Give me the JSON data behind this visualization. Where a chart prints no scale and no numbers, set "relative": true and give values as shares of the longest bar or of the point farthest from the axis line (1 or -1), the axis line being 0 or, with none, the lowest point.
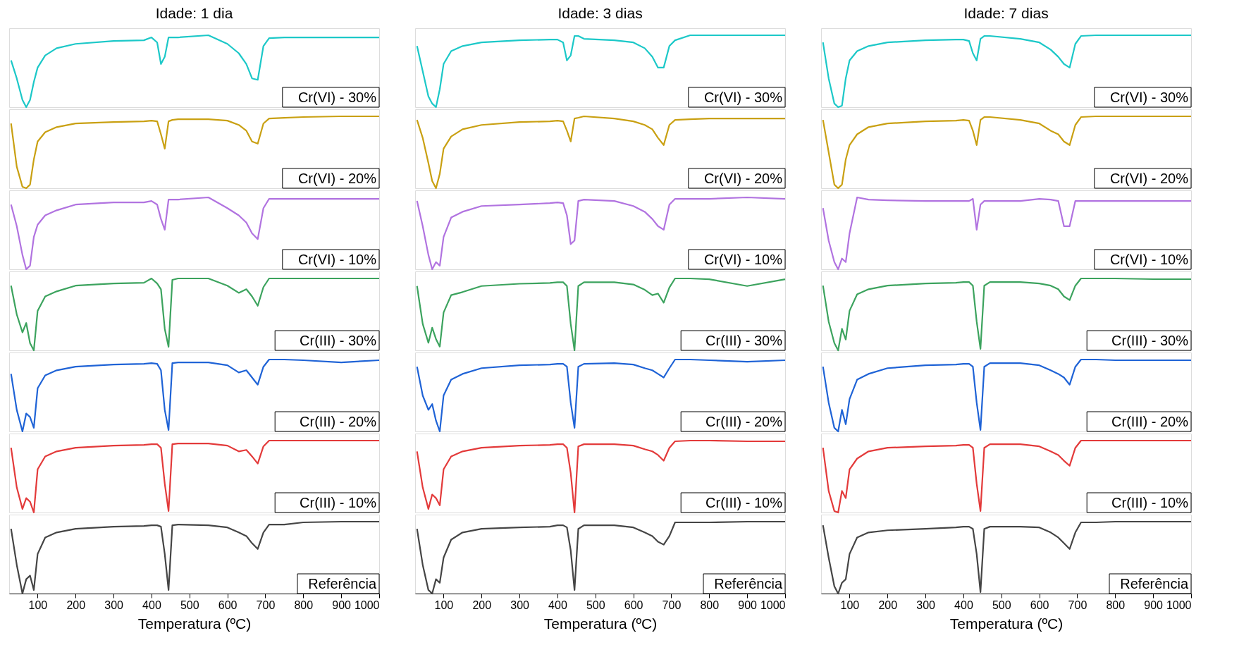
{
  "chart_data": [
    {
      "type": "line",
      "relative": true,
      "title": "Idade: 1 dia",
      "xlim": [
        25,
        1000
      ],
      "tick_labels": false,
      "x": [
        30,
        45,
        60,
        70,
        80,
        90,
        100,
        120,
        150,
        200,
        300,
        380,
        400,
        415,
        425,
        435,
        445,
        455,
        470,
        550,
        600,
        630,
        650,
        665,
        680,
        695,
        710,
        750,
        800,
        900,
        1000
      ],
      "series": [
        {
          "name": "Cr(VI) - 30%",
          "color": "#1cc8c8",
          "values": [
            0.65,
            0.4,
            0.1,
            0,
            0.1,
            0.35,
            0.55,
            0.72,
            0.82,
            0.88,
            0.92,
            0.93,
            0.97,
            0.9,
            0.6,
            0.7,
            0.97,
            0.97,
            0.97,
            1.0,
            0.88,
            0.75,
            0.6,
            0.4,
            0.38,
            0.85,
            0.96,
            0.97,
            0.97,
            0.97,
            0.97
          ]
        }
      ]
    },
    {
      "type": "line",
      "relative": true,
      "xlim": [
        25,
        1000
      ],
      "tick_labels": false,
      "x": [
        30,
        45,
        60,
        70,
        80,
        90,
        100,
        120,
        150,
        200,
        300,
        380,
        400,
        415,
        425,
        435,
        445,
        455,
        470,
        550,
        600,
        630,
        650,
        665,
        680,
        695,
        710,
        750,
        800,
        900,
        1000
      ],
      "series": [
        {
          "name": "Cr(VI) - 20%",
          "color": "#c9a012",
          "values": [
            0.9,
            0.3,
            0.02,
            0,
            0.05,
            0.4,
            0.65,
            0.78,
            0.85,
            0.9,
            0.92,
            0.93,
            0.94,
            0.93,
            0.75,
            0.55,
            0.93,
            0.95,
            0.96,
            0.96,
            0.94,
            0.88,
            0.8,
            0.65,
            0.62,
            0.9,
            0.97,
            0.98,
            0.99,
            1.0,
            1.0
          ]
        }
      ]
    },
    {
      "type": "line",
      "relative": true,
      "xlim": [
        25,
        1000
      ],
      "tick_labels": false,
      "x": [
        30,
        45,
        60,
        70,
        80,
        90,
        100,
        120,
        150,
        200,
        300,
        380,
        400,
        415,
        425,
        435,
        445,
        455,
        470,
        550,
        600,
        630,
        650,
        665,
        680,
        695,
        710,
        750,
        800,
        900,
        1000
      ],
      "series": [
        {
          "name": "Cr(VI) - 10%",
          "color": "#b173e0",
          "values": [
            0.9,
            0.6,
            0.2,
            0,
            0.05,
            0.45,
            0.62,
            0.75,
            0.82,
            0.9,
            0.93,
            0.93,
            0.95,
            0.9,
            0.7,
            0.55,
            0.97,
            0.97,
            0.97,
            1.0,
            0.85,
            0.75,
            0.65,
            0.5,
            0.42,
            0.85,
            0.98,
            0.98,
            0.98,
            0.98,
            0.98
          ]
        }
      ]
    },
    {
      "type": "line",
      "relative": true,
      "xlim": [
        25,
        1000
      ],
      "tick_labels": false,
      "x": [
        30,
        45,
        60,
        70,
        80,
        90,
        100,
        120,
        150,
        200,
        300,
        380,
        400,
        415,
        425,
        435,
        445,
        455,
        470,
        550,
        600,
        630,
        650,
        665,
        680,
        695,
        710,
        750,
        800,
        900,
        1000
      ],
      "series": [
        {
          "name": "Cr(III) - 30%",
          "color": "#3ca35e",
          "values": [
            0.9,
            0.5,
            0.25,
            0.38,
            0.1,
            0,
            0.55,
            0.75,
            0.82,
            0.9,
            0.93,
            0.94,
            1.0,
            0.93,
            0.85,
            0.3,
            0.05,
            0.98,
            1.0,
            1.0,
            0.9,
            0.8,
            0.85,
            0.75,
            0.62,
            0.88,
            1.0,
            1.0,
            1.0,
            1.0,
            1.0
          ]
        }
      ]
    },
    {
      "type": "line",
      "relative": true,
      "xlim": [
        25,
        1000
      ],
      "tick_labels": false,
      "x": [
        30,
        45,
        60,
        70,
        80,
        90,
        100,
        120,
        150,
        200,
        300,
        380,
        400,
        415,
        425,
        435,
        445,
        455,
        470,
        550,
        600,
        630,
        650,
        665,
        680,
        695,
        710,
        750,
        800,
        900,
        1000
      ],
      "series": [
        {
          "name": "Cr(III) - 20%",
          "color": "#1f63d6",
          "values": [
            0.8,
            0.3,
            0,
            0.25,
            0.2,
            0.05,
            0.6,
            0.78,
            0.85,
            0.9,
            0.93,
            0.94,
            0.95,
            0.94,
            0.85,
            0.3,
            0.02,
            0.95,
            0.96,
            0.96,
            0.92,
            0.82,
            0.85,
            0.75,
            0.65,
            0.9,
            1.0,
            1.0,
            0.99,
            0.96,
            0.99
          ]
        }
      ]
    },
    {
      "type": "line",
      "relative": true,
      "xlim": [
        25,
        1000
      ],
      "tick_labels": false,
      "x": [
        30,
        45,
        60,
        70,
        80,
        90,
        100,
        120,
        150,
        200,
        300,
        380,
        400,
        415,
        425,
        435,
        445,
        455,
        470,
        550,
        600,
        630,
        650,
        665,
        680,
        695,
        710,
        750,
        800,
        900,
        1000
      ],
      "series": [
        {
          "name": "Cr(III) - 10%",
          "color": "#e33a3a",
          "values": [
            0.9,
            0.35,
            0.05,
            0.2,
            0.15,
            0,
            0.6,
            0.78,
            0.85,
            0.9,
            0.93,
            0.94,
            0.95,
            0.95,
            0.9,
            0.4,
            0.02,
            0.95,
            0.96,
            0.96,
            0.93,
            0.85,
            0.87,
            0.78,
            0.68,
            0.92,
            1.0,
            1.0,
            1.0,
            1.0,
            1.0
          ]
        }
      ]
    },
    {
      "type": "line",
      "relative": true,
      "xlim": [
        25,
        1000
      ],
      "xticks": [
        100,
        200,
        300,
        400,
        500,
        600,
        700,
        800,
        900,
        1000
      ],
      "xlabel": "Temperatura (ºC)",
      "x": [
        30,
        45,
        60,
        70,
        80,
        90,
        100,
        120,
        150,
        200,
        300,
        380,
        400,
        415,
        425,
        435,
        445,
        455,
        470,
        550,
        600,
        630,
        650,
        665,
        680,
        695,
        710,
        750,
        800,
        900,
        1000
      ],
      "series": [
        {
          "name": "Referência",
          "color": "#454545",
          "values": [
            0.9,
            0.4,
            0,
            0.2,
            0.25,
            0.05,
            0.55,
            0.78,
            0.85,
            0.9,
            0.93,
            0.94,
            0.95,
            0.95,
            0.93,
            0.55,
            0.05,
            0.95,
            0.96,
            0.95,
            0.92,
            0.85,
            0.8,
            0.7,
            0.62,
            0.85,
            0.96,
            0.96,
            0.99,
            1.0,
            1.0
          ]
        }
      ]
    },
    {
      "type": "line",
      "relative": true,
      "title": "Idade: 3 dias",
      "xlim": [
        25,
        1000
      ],
      "tick_labels": false,
      "x": [
        30,
        45,
        60,
        70,
        80,
        90,
        100,
        120,
        150,
        200,
        300,
        380,
        400,
        415,
        425,
        435,
        445,
        455,
        470,
        550,
        600,
        630,
        650,
        665,
        680,
        695,
        710,
        750,
        800,
        900,
        1000
      ],
      "series": [
        {
          "name": "Cr(VI) - 30%",
          "color": "#1cc8c8",
          "values": [
            0.85,
            0.5,
            0.15,
            0.05,
            0,
            0.25,
            0.6,
            0.78,
            0.85,
            0.9,
            0.93,
            0.94,
            0.94,
            0.9,
            0.65,
            0.72,
            0.99,
            0.99,
            0.95,
            0.93,
            0.9,
            0.82,
            0.7,
            0.55,
            0.55,
            0.85,
            0.93,
            1.0,
            1.0,
            1.0,
            1.0
          ]
        }
      ]
    },
    {
      "type": "line",
      "relative": true,
      "xlim": [
        25,
        1000
      ],
      "tick_labels": false,
      "x": [
        30,
        45,
        60,
        70,
        80,
        90,
        100,
        120,
        150,
        200,
        300,
        380,
        400,
        415,
        425,
        435,
        445,
        455,
        470,
        550,
        600,
        630,
        650,
        665,
        680,
        695,
        710,
        750,
        800,
        900,
        1000
      ],
      "series": [
        {
          "name": "Cr(VI) - 20%",
          "color": "#c9a012",
          "values": [
            0.95,
            0.7,
            0.35,
            0.1,
            0,
            0.2,
            0.55,
            0.72,
            0.82,
            0.88,
            0.92,
            0.93,
            0.94,
            0.93,
            0.8,
            0.65,
            0.97,
            0.98,
            1.0,
            0.97,
            0.93,
            0.88,
            0.82,
            0.7,
            0.6,
            0.88,
            0.95,
            0.96,
            0.97,
            0.97,
            0.97
          ]
        }
      ]
    },
    {
      "type": "line",
      "relative": true,
      "xlim": [
        25,
        1000
      ],
      "tick_labels": false,
      "x": [
        30,
        45,
        60,
        70,
        80,
        90,
        100,
        120,
        150,
        200,
        300,
        380,
        400,
        415,
        425,
        435,
        445,
        455,
        470,
        550,
        600,
        630,
        650,
        665,
        680,
        695,
        710,
        750,
        800,
        900,
        1000
      ],
      "series": [
        {
          "name": "Cr(VI) - 10%",
          "color": "#b173e0",
          "values": [
            0.95,
            0.6,
            0.2,
            0,
            0.1,
            0.05,
            0.45,
            0.72,
            0.8,
            0.88,
            0.9,
            0.92,
            0.93,
            0.92,
            0.75,
            0.35,
            0.4,
            0.95,
            0.97,
            0.95,
            0.88,
            0.8,
            0.7,
            0.6,
            0.55,
            0.9,
            0.98,
            0.98,
            0.98,
            1.0,
            0.98
          ]
        }
      ]
    },
    {
      "type": "line",
      "relative": true,
      "xlim": [
        25,
        1000
      ],
      "tick_labels": false,
      "x": [
        30,
        45,
        60,
        70,
        80,
        90,
        100,
        120,
        150,
        200,
        300,
        380,
        400,
        415,
        425,
        435,
        445,
        455,
        470,
        550,
        600,
        630,
        650,
        665,
        680,
        695,
        710,
        750,
        800,
        900,
        1000
      ],
      "series": [
        {
          "name": "Cr(III) - 30%",
          "color": "#3ca35e",
          "values": [
            0.9,
            0.4,
            0.15,
            0.35,
            0.2,
            0.1,
            0.55,
            0.78,
            0.82,
            0.9,
            0.93,
            0.94,
            0.95,
            0.95,
            0.9,
            0.4,
            0.05,
            0.9,
            0.95,
            0.95,
            0.92,
            0.85,
            0.78,
            0.8,
            0.68,
            0.88,
            1.0,
            1.0,
            0.99,
            0.9,
            0.99
          ]
        }
      ]
    },
    {
      "type": "line",
      "relative": true,
      "xlim": [
        25,
        1000
      ],
      "tick_labels": false,
      "x": [
        30,
        45,
        60,
        70,
        80,
        90,
        100,
        120,
        150,
        200,
        300,
        380,
        400,
        415,
        425,
        435,
        445,
        455,
        470,
        550,
        600,
        630,
        650,
        665,
        680,
        695,
        710,
        750,
        800,
        900,
        1000
      ],
      "series": [
        {
          "name": "Cr(III) - 20%",
          "color": "#1f63d6",
          "values": [
            0.9,
            0.5,
            0.3,
            0.38,
            0.15,
            0,
            0.5,
            0.72,
            0.8,
            0.88,
            0.92,
            0.93,
            0.94,
            0.94,
            0.9,
            0.4,
            0.05,
            0.9,
            0.94,
            0.95,
            0.93,
            0.88,
            0.85,
            0.8,
            0.75,
            0.88,
            1.0,
            1.0,
            0.99,
            0.97,
            0.99
          ]
        }
      ]
    },
    {
      "type": "line",
      "relative": true,
      "xlim": [
        25,
        1000
      ],
      "tick_labels": false,
      "x": [
        30,
        45,
        60,
        70,
        80,
        90,
        100,
        120,
        150,
        200,
        300,
        380,
        400,
        415,
        425,
        435,
        445,
        455,
        470,
        550,
        600,
        630,
        650,
        665,
        680,
        695,
        710,
        750,
        800,
        900,
        1000
      ],
      "series": [
        {
          "name": "Cr(III) - 10%",
          "color": "#e33a3a",
          "values": [
            0.85,
            0.35,
            0.05,
            0.25,
            0.2,
            0.1,
            0.6,
            0.78,
            0.85,
            0.9,
            0.93,
            0.94,
            0.95,
            0.95,
            0.9,
            0.55,
            0,
            0.92,
            0.95,
            0.95,
            0.93,
            0.88,
            0.85,
            0.8,
            0.72,
            0.9,
            0.99,
            1.0,
            1.0,
            0.99,
            0.99
          ]
        }
      ]
    },
    {
      "type": "line",
      "relative": true,
      "xlim": [
        25,
        1000
      ],
      "xticks": [
        100,
        200,
        300,
        400,
        500,
        600,
        700,
        800,
        900,
        1000
      ],
      "xlabel": "Temperatura (ºC)",
      "x": [
        30,
        45,
        60,
        70,
        80,
        90,
        100,
        120,
        150,
        200,
        300,
        380,
        400,
        415,
        425,
        435,
        445,
        455,
        470,
        550,
        600,
        630,
        650,
        665,
        680,
        695,
        710,
        750,
        800,
        900,
        1000
      ],
      "series": [
        {
          "name": "Referência",
          "color": "#454545",
          "values": [
            0.9,
            0.4,
            0.05,
            0,
            0.2,
            0.15,
            0.5,
            0.75,
            0.85,
            0.9,
            0.92,
            0.93,
            0.95,
            0.95,
            0.92,
            0.6,
            0.05,
            0.9,
            0.95,
            0.95,
            0.92,
            0.85,
            0.8,
            0.72,
            0.68,
            0.8,
            0.99,
            0.99,
            0.99,
            1.0,
            1.0
          ]
        }
      ]
    },
    {
      "type": "line",
      "relative": true,
      "title": "Idade: 7 dias",
      "xlim": [
        25,
        1000
      ],
      "tick_labels": false,
      "x": [
        30,
        45,
        60,
        70,
        80,
        90,
        100,
        120,
        150,
        200,
        300,
        380,
        400,
        415,
        425,
        435,
        445,
        455,
        470,
        550,
        600,
        630,
        650,
        665,
        680,
        695,
        710,
        750,
        800,
        900,
        1000
      ],
      "series": [
        {
          "name": "Cr(VI) - 30%",
          "color": "#1cc8c8",
          "values": [
            0.9,
            0.4,
            0.05,
            0,
            0.02,
            0.4,
            0.65,
            0.78,
            0.85,
            0.9,
            0.93,
            0.94,
            0.94,
            0.92,
            0.75,
            0.65,
            0.95,
            0.99,
            0.99,
            0.95,
            0.9,
            0.8,
            0.7,
            0.6,
            0.55,
            0.88,
            0.99,
            1.0,
            1.0,
            1.0,
            1.0
          ]
        }
      ]
    },
    {
      "type": "line",
      "relative": true,
      "xlim": [
        25,
        1000
      ],
      "tick_labels": false,
      "x": [
        30,
        45,
        60,
        70,
        80,
        90,
        100,
        120,
        150,
        200,
        300,
        380,
        400,
        415,
        425,
        435,
        445,
        455,
        470,
        550,
        600,
        630,
        650,
        665,
        680,
        695,
        710,
        750,
        800,
        900,
        1000
      ],
      "series": [
        {
          "name": "Cr(VI) - 20%",
          "color": "#c9a012",
          "values": [
            0.95,
            0.5,
            0.05,
            0,
            0.05,
            0.4,
            0.6,
            0.75,
            0.85,
            0.9,
            0.93,
            0.94,
            0.95,
            0.94,
            0.8,
            0.6,
            0.95,
            0.99,
            0.99,
            0.95,
            0.9,
            0.8,
            0.75,
            0.65,
            0.6,
            0.88,
            0.99,
            1.0,
            1.0,
            1.0,
            1.0
          ]
        }
      ]
    },
    {
      "type": "line",
      "relative": true,
      "xlim": [
        25,
        1000
      ],
      "tick_labels": false,
      "x": [
        30,
        45,
        60,
        70,
        80,
        90,
        100,
        120,
        150,
        200,
        300,
        380,
        400,
        415,
        425,
        435,
        445,
        455,
        470,
        550,
        600,
        630,
        650,
        665,
        680,
        695,
        710,
        750,
        800,
        900,
        1000
      ],
      "series": [
        {
          "name": "Cr(VI) - 10%",
          "color": "#b173e0",
          "values": [
            0.85,
            0.4,
            0.1,
            0,
            0.15,
            0.1,
            0.5,
            1.0,
            0.97,
            0.96,
            0.95,
            0.95,
            0.95,
            0.95,
            0.98,
            0.55,
            0.9,
            0.95,
            0.95,
            0.95,
            0.98,
            0.97,
            0.95,
            0.6,
            0.6,
            0.95,
            0.95,
            0.95,
            0.95,
            0.95,
            0.95
          ]
        }
      ]
    },
    {
      "type": "line",
      "relative": true,
      "xlim": [
        25,
        1000
      ],
      "tick_labels": false,
      "x": [
        30,
        45,
        60,
        70,
        80,
        90,
        100,
        120,
        150,
        200,
        300,
        380,
        400,
        415,
        425,
        435,
        445,
        455,
        470,
        550,
        600,
        630,
        650,
        665,
        680,
        695,
        710,
        750,
        800,
        900,
        1000
      ],
      "series": [
        {
          "name": "Cr(III) - 30%",
          "color": "#3ca35e",
          "values": [
            0.9,
            0.4,
            0.1,
            0,
            0.3,
            0.15,
            0.55,
            0.78,
            0.85,
            0.9,
            0.93,
            0.94,
            0.95,
            0.95,
            0.9,
            0.4,
            0.02,
            0.9,
            0.95,
            0.95,
            0.93,
            0.9,
            0.85,
            0.75,
            0.7,
            0.9,
            1.0,
            1.0,
            1.0,
            0.99,
            0.99
          ]
        }
      ]
    },
    {
      "type": "line",
      "relative": true,
      "xlim": [
        25,
        1000
      ],
      "tick_labels": false,
      "x": [
        30,
        45,
        60,
        70,
        80,
        90,
        100,
        120,
        150,
        200,
        300,
        380,
        400,
        415,
        425,
        435,
        445,
        455,
        470,
        550,
        600,
        630,
        650,
        665,
        680,
        695,
        710,
        750,
        800,
        900,
        1000
      ],
      "series": [
        {
          "name": "Cr(III) - 20%",
          "color": "#1f63d6",
          "values": [
            0.9,
            0.4,
            0.05,
            0,
            0.3,
            0.1,
            0.45,
            0.72,
            0.8,
            0.88,
            0.92,
            0.93,
            0.94,
            0.94,
            0.9,
            0.4,
            0.02,
            0.9,
            0.95,
            0.95,
            0.92,
            0.85,
            0.8,
            0.75,
            0.65,
            0.9,
            1.0,
            1.0,
            0.99,
            0.99,
            0.99
          ]
        }
      ]
    },
    {
      "type": "line",
      "relative": true,
      "xlim": [
        25,
        1000
      ],
      "tick_labels": false,
      "x": [
        30,
        45,
        60,
        70,
        80,
        90,
        100,
        120,
        150,
        200,
        300,
        380,
        400,
        415,
        425,
        435,
        445,
        455,
        470,
        550,
        600,
        630,
        650,
        665,
        680,
        695,
        710,
        750,
        800,
        900,
        1000
      ],
      "series": [
        {
          "name": "Cr(III) - 10%",
          "color": "#e33a3a",
          "values": [
            0.9,
            0.3,
            0.02,
            0,
            0.3,
            0.2,
            0.6,
            0.75,
            0.85,
            0.9,
            0.92,
            0.93,
            0.94,
            0.94,
            0.9,
            0.4,
            0.02,
            0.9,
            0.95,
            0.95,
            0.92,
            0.85,
            0.8,
            0.72,
            0.65,
            0.9,
            1.0,
            1.0,
            1.0,
            1.0,
            1.0
          ]
        }
      ]
    },
    {
      "type": "line",
      "relative": true,
      "xlim": [
        25,
        1000
      ],
      "xticks": [
        100,
        200,
        300,
        400,
        500,
        600,
        700,
        800,
        900,
        1000
      ],
      "xlabel": "Temperatura (ºC)",
      "x": [
        30,
        45,
        60,
        70,
        80,
        90,
        100,
        120,
        150,
        200,
        300,
        380,
        400,
        415,
        425,
        435,
        445,
        455,
        470,
        550,
        600,
        630,
        650,
        665,
        680,
        695,
        710,
        750,
        800,
        900,
        1000
      ],
      "series": [
        {
          "name": "Referência",
          "color": "#454545",
          "values": [
            0.95,
            0.5,
            0.1,
            0,
            0.15,
            0.2,
            0.55,
            0.78,
            0.85,
            0.88,
            0.9,
            0.92,
            0.93,
            0.93,
            0.9,
            0.55,
            0.02,
            0.9,
            0.93,
            0.93,
            0.92,
            0.85,
            0.78,
            0.7,
            0.62,
            0.85,
            0.99,
            0.99,
            1.0,
            1.0,
            1.0
          ]
        }
      ]
    }
  ]
}
